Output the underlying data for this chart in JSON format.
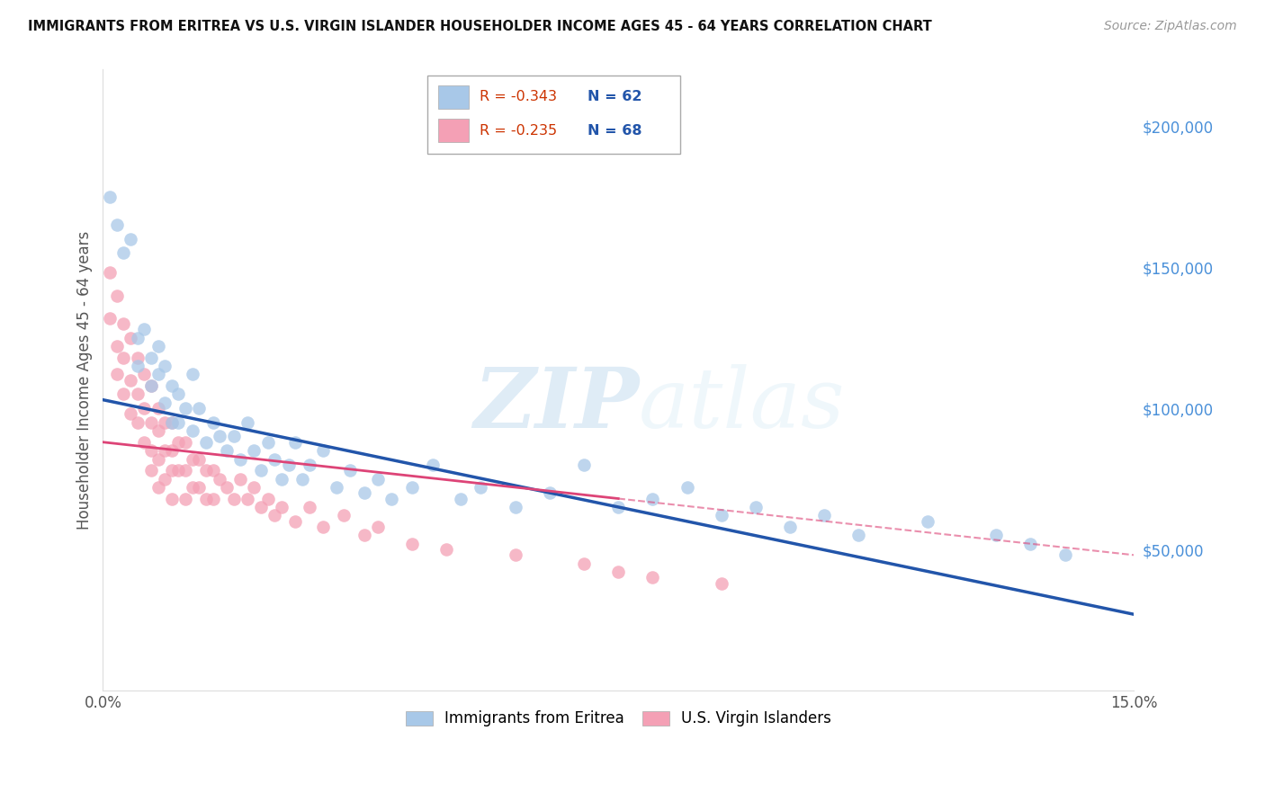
{
  "title": "IMMIGRANTS FROM ERITREA VS U.S. VIRGIN ISLANDER HOUSEHOLDER INCOME AGES 45 - 64 YEARS CORRELATION CHART",
  "source": "Source: ZipAtlas.com",
  "ylabel": "Householder Income Ages 45 - 64 years",
  "xlim": [
    0.0,
    0.15
  ],
  "ylim": [
    0,
    220000
  ],
  "xticks": [
    0.0,
    0.03,
    0.06,
    0.09,
    0.12,
    0.15
  ],
  "xtick_labels": [
    "0.0%",
    "",
    "",
    "",
    "",
    "15.0%"
  ],
  "yticks_right": [
    50000,
    100000,
    150000,
    200000
  ],
  "ytick_labels_right": [
    "$50,000",
    "$100,000",
    "$150,000",
    "$200,000"
  ],
  "grid_color": "#cccccc",
  "background_color": "#ffffff",
  "watermark_zip": "ZIP",
  "watermark_atlas": "atlas",
  "legend_label1": "Immigrants from Eritrea",
  "legend_label2": "U.S. Virgin Islanders",
  "r1": -0.343,
  "n1": 62,
  "r2": -0.235,
  "n2": 68,
  "color1": "#a8c8e8",
  "color2": "#f4a0b5",
  "line_color1": "#2255aa",
  "line_color2": "#dd4477",
  "line1_x0": 0.0,
  "line1_y0": 103000,
  "line1_x1": 0.15,
  "line1_y1": 27000,
  "line2_x0": 0.0,
  "line2_y0": 88000,
  "line2_x1": 0.075,
  "line2_y1": 68000,
  "scatter1_x": [
    0.001,
    0.002,
    0.003,
    0.004,
    0.005,
    0.005,
    0.006,
    0.007,
    0.007,
    0.008,
    0.008,
    0.009,
    0.009,
    0.01,
    0.01,
    0.011,
    0.011,
    0.012,
    0.013,
    0.013,
    0.014,
    0.015,
    0.016,
    0.017,
    0.018,
    0.019,
    0.02,
    0.021,
    0.022,
    0.023,
    0.024,
    0.025,
    0.026,
    0.027,
    0.028,
    0.029,
    0.03,
    0.032,
    0.034,
    0.036,
    0.038,
    0.04,
    0.042,
    0.045,
    0.048,
    0.052,
    0.055,
    0.06,
    0.065,
    0.07,
    0.075,
    0.08,
    0.085,
    0.09,
    0.095,
    0.1,
    0.105,
    0.11,
    0.12,
    0.13,
    0.135,
    0.14
  ],
  "scatter1_y": [
    175000,
    165000,
    155000,
    160000,
    125000,
    115000,
    128000,
    118000,
    108000,
    122000,
    112000,
    102000,
    115000,
    108000,
    95000,
    105000,
    95000,
    100000,
    92000,
    112000,
    100000,
    88000,
    95000,
    90000,
    85000,
    90000,
    82000,
    95000,
    85000,
    78000,
    88000,
    82000,
    75000,
    80000,
    88000,
    75000,
    80000,
    85000,
    72000,
    78000,
    70000,
    75000,
    68000,
    72000,
    80000,
    68000,
    72000,
    65000,
    70000,
    80000,
    65000,
    68000,
    72000,
    62000,
    65000,
    58000,
    62000,
    55000,
    60000,
    55000,
    52000,
    48000
  ],
  "scatter2_x": [
    0.001,
    0.001,
    0.002,
    0.002,
    0.002,
    0.003,
    0.003,
    0.003,
    0.004,
    0.004,
    0.004,
    0.005,
    0.005,
    0.005,
    0.006,
    0.006,
    0.006,
    0.007,
    0.007,
    0.007,
    0.007,
    0.008,
    0.008,
    0.008,
    0.008,
    0.009,
    0.009,
    0.009,
    0.01,
    0.01,
    0.01,
    0.01,
    0.011,
    0.011,
    0.012,
    0.012,
    0.012,
    0.013,
    0.013,
    0.014,
    0.014,
    0.015,
    0.015,
    0.016,
    0.016,
    0.017,
    0.018,
    0.019,
    0.02,
    0.021,
    0.022,
    0.023,
    0.024,
    0.025,
    0.026,
    0.028,
    0.03,
    0.032,
    0.035,
    0.038,
    0.04,
    0.045,
    0.05,
    0.06,
    0.07,
    0.075,
    0.08,
    0.09
  ],
  "scatter2_y": [
    148000,
    132000,
    140000,
    122000,
    112000,
    130000,
    118000,
    105000,
    125000,
    110000,
    98000,
    118000,
    105000,
    95000,
    112000,
    100000,
    88000,
    108000,
    95000,
    85000,
    78000,
    100000,
    92000,
    82000,
    72000,
    95000,
    85000,
    75000,
    95000,
    85000,
    78000,
    68000,
    88000,
    78000,
    88000,
    78000,
    68000,
    82000,
    72000,
    82000,
    72000,
    78000,
    68000,
    78000,
    68000,
    75000,
    72000,
    68000,
    75000,
    68000,
    72000,
    65000,
    68000,
    62000,
    65000,
    60000,
    65000,
    58000,
    62000,
    55000,
    58000,
    52000,
    50000,
    48000,
    45000,
    42000,
    40000,
    38000
  ]
}
